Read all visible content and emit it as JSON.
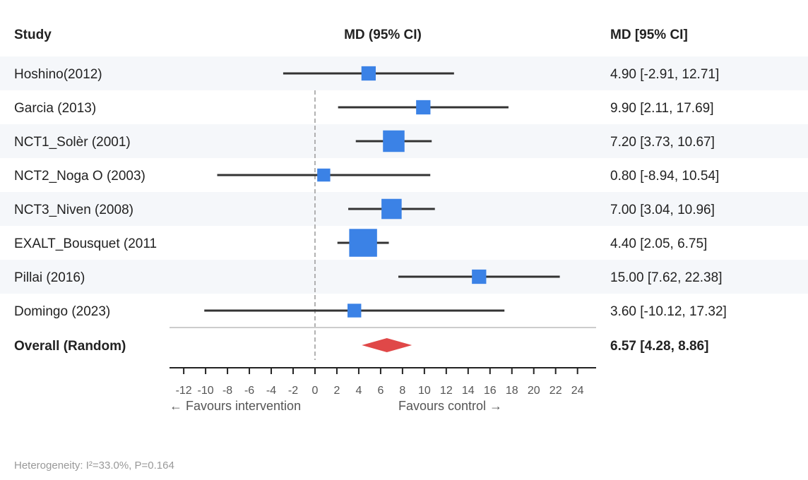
{
  "headers": {
    "study": "Study",
    "plot": "MD (95% CI)",
    "ci": "MD [95% CI]"
  },
  "chart_data": {
    "type": "forest",
    "studies": [
      {
        "name": "Hoshino(2012)",
        "md": 4.9,
        "lower": -2.91,
        "upper": 12.71,
        "weight_rel": 0.05,
        "ci_label": "4.90 [-2.91, 12.71]"
      },
      {
        "name": "Garcia (2013)",
        "md": 9.9,
        "lower": 2.11,
        "upper": 17.69,
        "weight_rel": 0.05,
        "ci_label": "9.90 [2.11, 17.69]"
      },
      {
        "name": "NCT1_Solèr (2001)",
        "md": 7.2,
        "lower": 3.73,
        "upper": 10.67,
        "weight_rel": 0.25,
        "ci_label": "7.20 [3.73, 10.67]"
      },
      {
        "name": "NCT2_Noga O (2003)",
        "md": 0.8,
        "lower": -8.94,
        "upper": 10.54,
        "weight_rel": 0.03,
        "ci_label": "0.80 [-8.94, 10.54]"
      },
      {
        "name": "NCT3_Niven (2008)",
        "md": 7.0,
        "lower": 3.04,
        "upper": 10.96,
        "weight_rel": 0.2,
        "ci_label": "7.00 [3.04, 10.96]"
      },
      {
        "name": "EXALT_Bousquet (2011",
        "md": 4.4,
        "lower": 2.05,
        "upper": 6.75,
        "weight_rel": 0.55,
        "ci_label": "4.40 [2.05, 6.75]"
      },
      {
        "name": "Pillai (2016)",
        "md": 15.0,
        "lower": 7.62,
        "upper": 22.38,
        "weight_rel": 0.05,
        "ci_label": "15.00 [7.62, 22.38]"
      },
      {
        "name": "Domingo (2023)",
        "md": 3.6,
        "lower": -10.12,
        "upper": 17.32,
        "weight_rel": 0.04,
        "ci_label": "3.60 [-10.12, 17.32]"
      }
    ],
    "overall": {
      "name": "Overall (Random)",
      "md": 6.57,
      "lower": 4.28,
      "upper": 8.86,
      "ci_label": "6.57 [4.28, 8.86]"
    },
    "x_ticks": [
      -12,
      -10,
      -8,
      -6,
      -4,
      -2,
      0,
      2,
      4,
      6,
      8,
      10,
      12,
      14,
      16,
      18,
      20,
      22,
      24
    ],
    "xlim": [
      -13.3,
      25.7
    ],
    "null_line": 0,
    "favours_left": "← Favours intervention",
    "favours_right": "Favours control →",
    "heterogeneity": "Heterogeneity: I²=33.0%, P=0.164",
    "colors": {
      "square": "#3b82e6",
      "diamond": "#e04848",
      "ci_line": "#333333",
      "row_stripe": "#f5f7fa",
      "null_line": "#999999"
    }
  }
}
